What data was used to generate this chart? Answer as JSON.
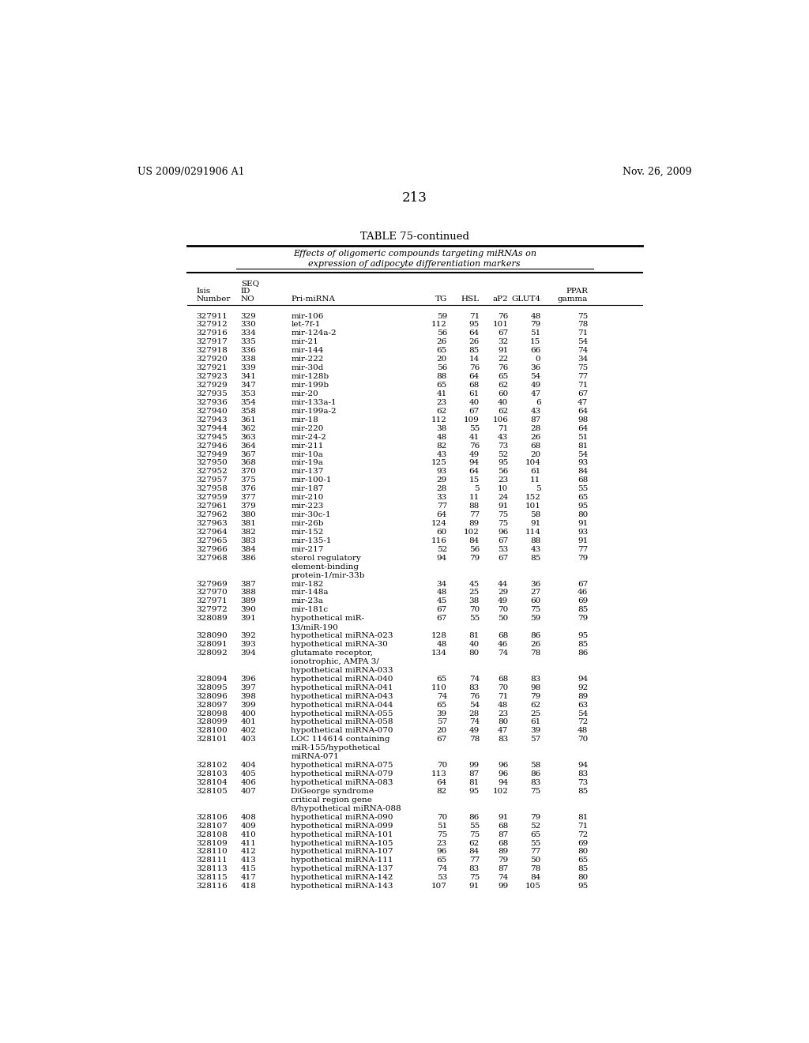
{
  "header_left": "US 2009/0291906 A1",
  "header_right": "Nov. 26, 2009",
  "page_number": "213",
  "table_title": "TABLE 75-continued",
  "table_subtitle1": "Effects of oligomeric compounds targeting miRNAs on",
  "table_subtitle2": "expression of adipocyte differentiation markers",
  "rows": [
    [
      "327911",
      "329",
      "mir-106",
      "59",
      "71",
      "76",
      "48",
      "75"
    ],
    [
      "327912",
      "330",
      "let-7f-1",
      "112",
      "95",
      "101",
      "79",
      "78"
    ],
    [
      "327916",
      "334",
      "mir-124a-2",
      "56",
      "64",
      "67",
      "51",
      "71"
    ],
    [
      "327917",
      "335",
      "mir-21",
      "26",
      "26",
      "32",
      "15",
      "54"
    ],
    [
      "327918",
      "336",
      "mir-144",
      "65",
      "85",
      "91",
      "66",
      "74"
    ],
    [
      "327920",
      "338",
      "mir-222",
      "20",
      "14",
      "22",
      "0",
      "34"
    ],
    [
      "327921",
      "339",
      "mir-30d",
      "56",
      "76",
      "76",
      "36",
      "75"
    ],
    [
      "327923",
      "341",
      "mir-128b",
      "88",
      "64",
      "65",
      "54",
      "77"
    ],
    [
      "327929",
      "347",
      "mir-199b",
      "65",
      "68",
      "62",
      "49",
      "71"
    ],
    [
      "327935",
      "353",
      "mir-20",
      "41",
      "61",
      "60",
      "47",
      "67"
    ],
    [
      "327936",
      "354",
      "mir-133a-1",
      "23",
      "40",
      "40",
      "6",
      "47"
    ],
    [
      "327940",
      "358",
      "mir-199a-2",
      "62",
      "67",
      "62",
      "43",
      "64"
    ],
    [
      "327943",
      "361",
      "mir-18",
      "112",
      "109",
      "106",
      "87",
      "98"
    ],
    [
      "327944",
      "362",
      "mir-220",
      "38",
      "55",
      "71",
      "28",
      "64"
    ],
    [
      "327945",
      "363",
      "mir-24-2",
      "48",
      "41",
      "43",
      "26",
      "51"
    ],
    [
      "327946",
      "364",
      "mir-211",
      "82",
      "76",
      "73",
      "68",
      "81"
    ],
    [
      "327949",
      "367",
      "mir-10a",
      "43",
      "49",
      "52",
      "20",
      "54"
    ],
    [
      "327950",
      "368",
      "mir-19a",
      "125",
      "94",
      "95",
      "104",
      "93"
    ],
    [
      "327952",
      "370",
      "mir-137",
      "93",
      "64",
      "56",
      "61",
      "84"
    ],
    [
      "327957",
      "375",
      "mir-100-1",
      "29",
      "15",
      "23",
      "11",
      "68"
    ],
    [
      "327958",
      "376",
      "mir-187",
      "28",
      "5",
      "10",
      "5",
      "55"
    ],
    [
      "327959",
      "377",
      "mir-210",
      "33",
      "11",
      "24",
      "152",
      "65"
    ],
    [
      "327961",
      "379",
      "mir-223",
      "77",
      "88",
      "91",
      "101",
      "95"
    ],
    [
      "327962",
      "380",
      "mir-30c-1",
      "64",
      "77",
      "75",
      "58",
      "80"
    ],
    [
      "327963",
      "381",
      "mir-26b",
      "124",
      "89",
      "75",
      "91",
      "91"
    ],
    [
      "327964",
      "382",
      "mir-152",
      "60",
      "102",
      "96",
      "114",
      "93"
    ],
    [
      "327965",
      "383",
      "mir-135-1",
      "116",
      "84",
      "67",
      "88",
      "91"
    ],
    [
      "327966",
      "384",
      "mir-217",
      "52",
      "56",
      "53",
      "43",
      "77"
    ],
    [
      "327968",
      "386",
      "sterol regulatory\nelement-binding\nprotein-1/mir-33b",
      "94",
      "79",
      "67",
      "85",
      "79"
    ],
    [
      "327969",
      "387",
      "mir-182",
      "34",
      "45",
      "44",
      "36",
      "67"
    ],
    [
      "327970",
      "388",
      "mir-148a",
      "48",
      "25",
      "29",
      "27",
      "46"
    ],
    [
      "327971",
      "389",
      "mir-23a",
      "45",
      "38",
      "49",
      "60",
      "69"
    ],
    [
      "327972",
      "390",
      "mir-181c",
      "67",
      "70",
      "70",
      "75",
      "85"
    ],
    [
      "328089",
      "391",
      "hypothetical miR-\n13/miR-190",
      "67",
      "55",
      "50",
      "59",
      "79"
    ],
    [
      "328090",
      "392",
      "hypothetical miRNA-023",
      "128",
      "81",
      "68",
      "86",
      "95"
    ],
    [
      "328091",
      "393",
      "hypothetical miRNA-30",
      "48",
      "40",
      "46",
      "26",
      "85"
    ],
    [
      "328092",
      "394",
      "glutamate receptor,\nionotrophic, AMPA 3/\nhypothetical miRNA-033",
      "134",
      "80",
      "74",
      "78",
      "86"
    ],
    [
      "328094",
      "396",
      "hypothetical miRNA-040",
      "65",
      "74",
      "68",
      "83",
      "94"
    ],
    [
      "328095",
      "397",
      "hypothetical miRNA-041",
      "110",
      "83",
      "70",
      "98",
      "92"
    ],
    [
      "328096",
      "398",
      "hypothetical miRNA-043",
      "74",
      "76",
      "71",
      "79",
      "89"
    ],
    [
      "328097",
      "399",
      "hypothetical miRNA-044",
      "65",
      "54",
      "48",
      "62",
      "63"
    ],
    [
      "328098",
      "400",
      "hypothetical miRNA-055",
      "39",
      "28",
      "23",
      "25",
      "54"
    ],
    [
      "328099",
      "401",
      "hypothetical miRNA-058",
      "57",
      "74",
      "80",
      "61",
      "72"
    ],
    [
      "328100",
      "402",
      "hypothetical miRNA-070",
      "20",
      "49",
      "47",
      "39",
      "48"
    ],
    [
      "328101",
      "403",
      "LOC 114614 containing\nmiR-155/hypothetical\nmiRNA-071",
      "67",
      "78",
      "83",
      "57",
      "70"
    ],
    [
      "328102",
      "404",
      "hypothetical miRNA-075",
      "70",
      "99",
      "96",
      "58",
      "94"
    ],
    [
      "328103",
      "405",
      "hypothetical miRNA-079",
      "113",
      "87",
      "96",
      "86",
      "83"
    ],
    [
      "328104",
      "406",
      "hypothetical miRNA-083",
      "64",
      "81",
      "94",
      "83",
      "73"
    ],
    [
      "328105",
      "407",
      "DiGeorge syndrome\ncritical region gene\n8/hypothetical miRNA-088",
      "82",
      "95",
      "102",
      "75",
      "85"
    ],
    [
      "328106",
      "408",
      "hypothetical miRNA-090",
      "70",
      "86",
      "91",
      "79",
      "81"
    ],
    [
      "328107",
      "409",
      "hypothetical miRNA-099",
      "51",
      "55",
      "68",
      "52",
      "71"
    ],
    [
      "328108",
      "410",
      "hypothetical miRNA-101",
      "75",
      "75",
      "87",
      "65",
      "72"
    ],
    [
      "328109",
      "411",
      "hypothetical miRNA-105",
      "23",
      "62",
      "68",
      "55",
      "69"
    ],
    [
      "328110",
      "412",
      "hypothetical miRNA-107",
      "96",
      "84",
      "89",
      "77",
      "80"
    ],
    [
      "328111",
      "413",
      "hypothetical miRNA-111",
      "65",
      "77",
      "79",
      "50",
      "65"
    ],
    [
      "328113",
      "415",
      "hypothetical miRNA-137",
      "74",
      "83",
      "87",
      "78",
      "85"
    ],
    [
      "328115",
      "417",
      "hypothetical miRNA-142",
      "53",
      "75",
      "74",
      "84",
      "80"
    ],
    [
      "328116",
      "418",
      "hypothetical miRNA-143",
      "107",
      "91",
      "99",
      "105",
      "95"
    ]
  ],
  "background_color": "#ffffff",
  "text_color": "#000000",
  "font_size": 7.5,
  "title_font_size": 9.5
}
